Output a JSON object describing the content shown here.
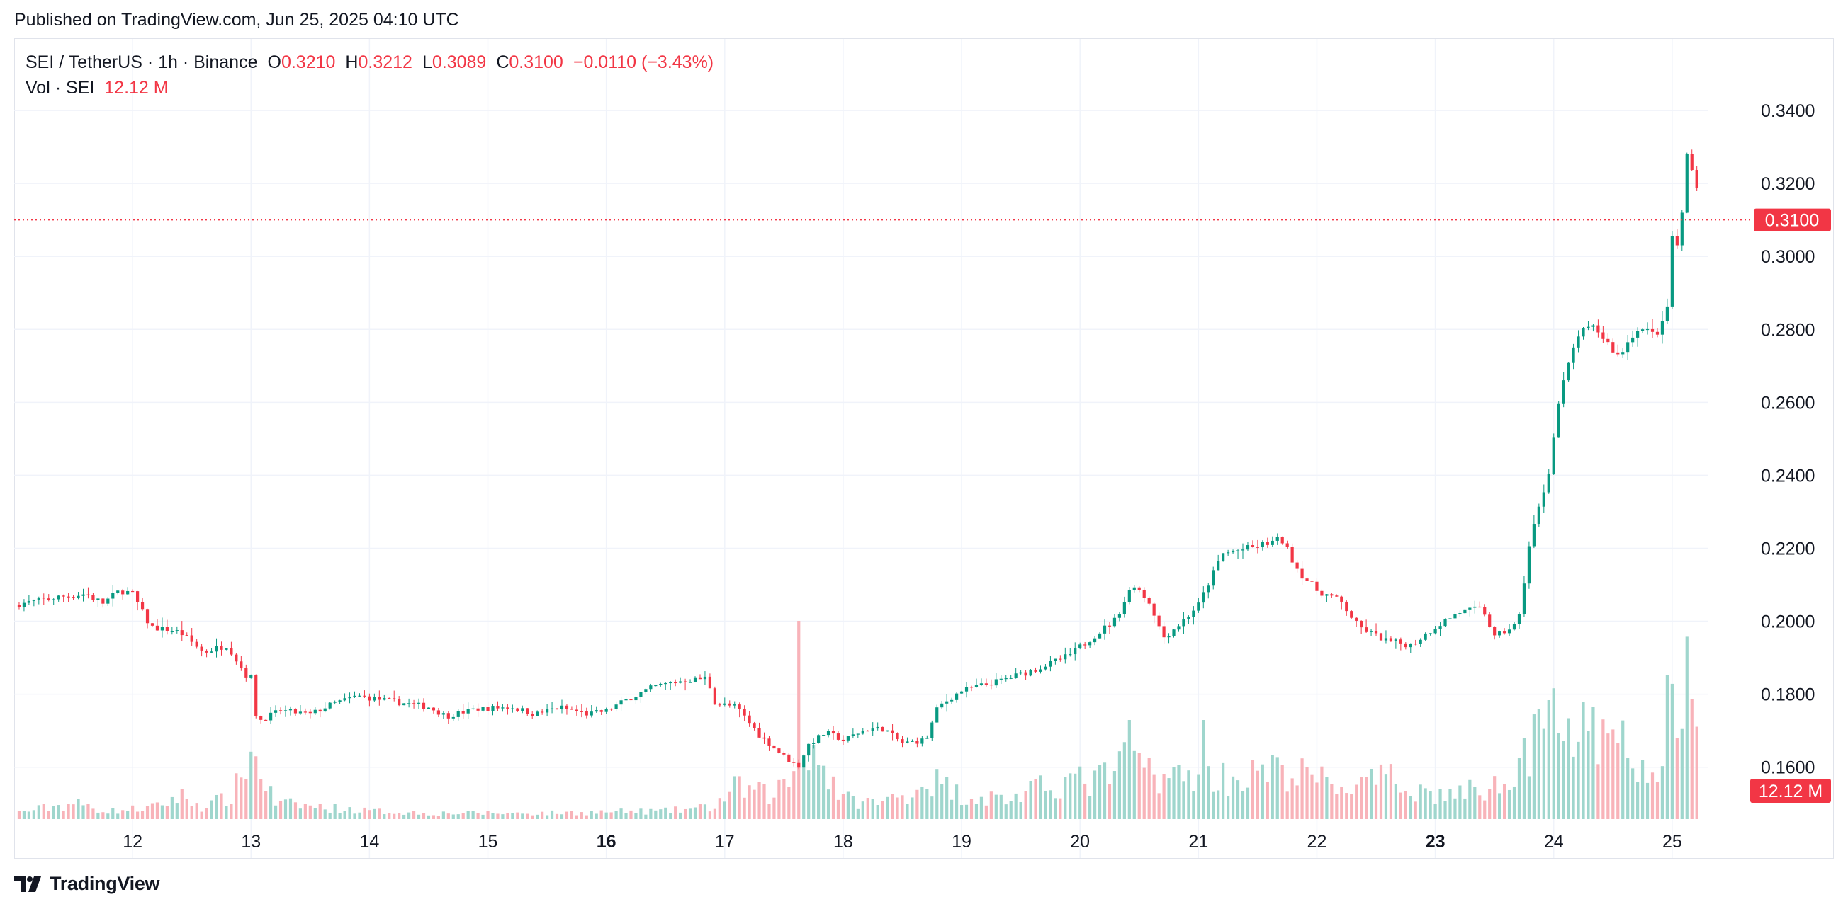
{
  "header": {
    "published": "Published on TradingView.com, Jun 25, 2025 04:10 UTC"
  },
  "legend": {
    "symbol": "SEI / TetherUS · 1h · Binance",
    "o_label": "O",
    "o_value": "0.3210",
    "h_label": "H",
    "h_value": "0.3212",
    "l_label": "L",
    "l_value": "0.3089",
    "c_label": "C",
    "c_value": "0.3100",
    "change": "−0.0110 (−3.43%)",
    "vol_label": "Vol · SEI",
    "vol_value": "12.12 M"
  },
  "footer": {
    "brand": "TradingView"
  },
  "colors": {
    "up": "#089981",
    "down": "#f23645",
    "up_vol": "#9fd6cd",
    "down_vol": "#f8b3b9",
    "grid": "#f0f3fa",
    "axis_text": "#131722"
  },
  "chart_data": {
    "type": "candlestick",
    "interval": "1h",
    "x_ticks": [
      {
        "label": "12",
        "day": 12,
        "bold": false
      },
      {
        "label": "13",
        "day": 13,
        "bold": false
      },
      {
        "label": "14",
        "day": 14,
        "bold": false
      },
      {
        "label": "15",
        "day": 15,
        "bold": false
      },
      {
        "label": "16",
        "day": 16,
        "bold": true
      },
      {
        "label": "17",
        "day": 17,
        "bold": false
      },
      {
        "label": "18",
        "day": 18,
        "bold": false
      },
      {
        "label": "19",
        "day": 19,
        "bold": false
      },
      {
        "label": "20",
        "day": 20,
        "bold": false
      },
      {
        "label": "21",
        "day": 21,
        "bold": false
      },
      {
        "label": "22",
        "day": 22,
        "bold": false
      },
      {
        "label": "23",
        "day": 23,
        "bold": true
      },
      {
        "label": "24",
        "day": 24,
        "bold": false
      },
      {
        "label": "25",
        "day": 25,
        "bold": false
      }
    ],
    "x_range_days": [
      11.0,
      25.3
    ],
    "y_ticks": [
      "0.3400",
      "0.3200",
      "0.3000",
      "0.2800",
      "0.2600",
      "0.2400",
      "0.2200",
      "0.2000",
      "0.1800",
      "0.1600"
    ],
    "y_range": [
      0.145,
      0.36
    ],
    "last_price": 0.31,
    "last_price_label": "0.3100",
    "last_volume_label": "12.12 M",
    "volume_max": 50,
    "price_anchors": [
      [
        11.0,
        0.2045
      ],
      [
        11.35,
        0.2065
      ],
      [
        11.6,
        0.2075
      ],
      [
        11.75,
        0.205
      ],
      [
        11.9,
        0.2085
      ],
      [
        12.0,
        0.2075
      ],
      [
        12.15,
        0.1985
      ],
      [
        12.4,
        0.197
      ],
      [
        12.6,
        0.1915
      ],
      [
        12.8,
        0.1935
      ],
      [
        12.95,
        0.1855
      ],
      [
        13.0,
        0.1845
      ],
      [
        13.05,
        0.1725
      ],
      [
        13.25,
        0.1755
      ],
      [
        13.5,
        0.1745
      ],
      [
        13.7,
        0.1775
      ],
      [
        13.9,
        0.1795
      ],
      [
        14.1,
        0.1785
      ],
      [
        14.3,
        0.1775
      ],
      [
        14.5,
        0.1765
      ],
      [
        14.65,
        0.174
      ],
      [
        14.9,
        0.176
      ],
      [
        15.2,
        0.1765
      ],
      [
        15.4,
        0.1745
      ],
      [
        15.6,
        0.1765
      ],
      [
        15.85,
        0.1745
      ],
      [
        16.0,
        0.1755
      ],
      [
        16.2,
        0.179
      ],
      [
        16.4,
        0.182
      ],
      [
        16.6,
        0.1835
      ],
      [
        16.85,
        0.1845
      ],
      [
        16.92,
        0.1775
      ],
      [
        17.1,
        0.1765
      ],
      [
        17.3,
        0.1685
      ],
      [
        17.5,
        0.163
      ],
      [
        17.62,
        0.16
      ],
      [
        17.7,
        0.166
      ],
      [
        17.85,
        0.1695
      ],
      [
        18.0,
        0.1675
      ],
      [
        18.2,
        0.1705
      ],
      [
        18.35,
        0.1705
      ],
      [
        18.5,
        0.1665
      ],
      [
        18.7,
        0.1675
      ],
      [
        18.8,
        0.1765
      ],
      [
        19.0,
        0.181
      ],
      [
        19.3,
        0.1835
      ],
      [
        19.6,
        0.1865
      ],
      [
        19.9,
        0.1905
      ],
      [
        20.1,
        0.1955
      ],
      [
        20.3,
        0.2005
      ],
      [
        20.45,
        0.2105
      ],
      [
        20.6,
        0.2045
      ],
      [
        20.7,
        0.1955
      ],
      [
        20.85,
        0.1995
      ],
      [
        21.0,
        0.2045
      ],
      [
        21.2,
        0.2185
      ],
      [
        21.5,
        0.2205
      ],
      [
        21.7,
        0.2225
      ],
      [
        21.85,
        0.2135
      ],
      [
        22.0,
        0.2085
      ],
      [
        22.2,
        0.2055
      ],
      [
        22.35,
        0.1985
      ],
      [
        22.6,
        0.1945
      ],
      [
        22.8,
        0.1935
      ],
      [
        23.0,
        0.1985
      ],
      [
        23.2,
        0.2025
      ],
      [
        23.4,
        0.2035
      ],
      [
        23.5,
        0.1955
      ],
      [
        23.7,
        0.1995
      ],
      [
        23.8,
        0.2225
      ],
      [
        23.95,
        0.2395
      ],
      [
        24.05,
        0.2615
      ],
      [
        24.2,
        0.2785
      ],
      [
        24.35,
        0.2805
      ],
      [
        24.55,
        0.2725
      ],
      [
        24.7,
        0.2805
      ],
      [
        24.85,
        0.2785
      ],
      [
        24.95,
        0.2825
      ],
      [
        25.0,
        0.3055
      ],
      [
        25.07,
        0.3005
      ],
      [
        25.1,
        0.3265
      ],
      [
        25.14,
        0.3285
      ],
      [
        25.2,
        0.321
      ],
      [
        25.24,
        0.31
      ]
    ],
    "volume_anchors": [
      [
        11.0,
        1.5
      ],
      [
        11.5,
        4
      ],
      [
        11.8,
        2
      ],
      [
        12.2,
        3
      ],
      [
        12.4,
        6
      ],
      [
        12.6,
        3
      ],
      [
        12.85,
        6
      ],
      [
        13.0,
        18
      ],
      [
        13.2,
        4
      ],
      [
        13.6,
        3
      ],
      [
        14.0,
        2
      ],
      [
        14.5,
        1.5
      ],
      [
        15.0,
        1.5
      ],
      [
        15.5,
        1.5
      ],
      [
        16.0,
        1.8
      ],
      [
        16.5,
        2
      ],
      [
        16.9,
        3
      ],
      [
        17.1,
        8
      ],
      [
        17.4,
        6
      ],
      [
        17.6,
        12
      ],
      [
        17.7,
        20
      ],
      [
        18.0,
        5
      ],
      [
        18.3,
        4
      ],
      [
        18.5,
        6
      ],
      [
        18.75,
        10
      ],
      [
        19.0,
        6
      ],
      [
        19.4,
        5
      ],
      [
        19.7,
        8
      ],
      [
        19.9,
        10
      ],
      [
        20.1,
        9
      ],
      [
        20.4,
        14
      ],
      [
        20.65,
        12
      ],
      [
        20.85,
        10
      ],
      [
        21.0,
        12
      ],
      [
        21.3,
        10
      ],
      [
        21.6,
        12
      ],
      [
        21.9,
        11
      ],
      [
        22.1,
        9
      ],
      [
        22.3,
        8
      ],
      [
        22.6,
        10
      ],
      [
        22.8,
        8
      ],
      [
        23.0,
        6
      ],
      [
        23.3,
        7
      ],
      [
        23.5,
        8
      ],
      [
        23.7,
        16
      ],
      [
        23.9,
        20
      ],
      [
        24.05,
        24
      ],
      [
        24.3,
        20
      ],
      [
        24.6,
        18
      ],
      [
        24.85,
        8
      ],
      [
        24.95,
        26
      ],
      [
        25.05,
        34
      ],
      [
        25.12,
        40
      ],
      [
        25.2,
        20
      ],
      [
        25.24,
        9
      ]
    ],
    "volume_spikes": [
      [
        17.62,
        50
      ],
      [
        25.13,
        46
      ],
      [
        13.0,
        17
      ],
      [
        20.42,
        25
      ],
      [
        21.05,
        25
      ],
      [
        23.95,
        30
      ],
      [
        24.0,
        33
      ]
    ],
    "seed": 7
  }
}
